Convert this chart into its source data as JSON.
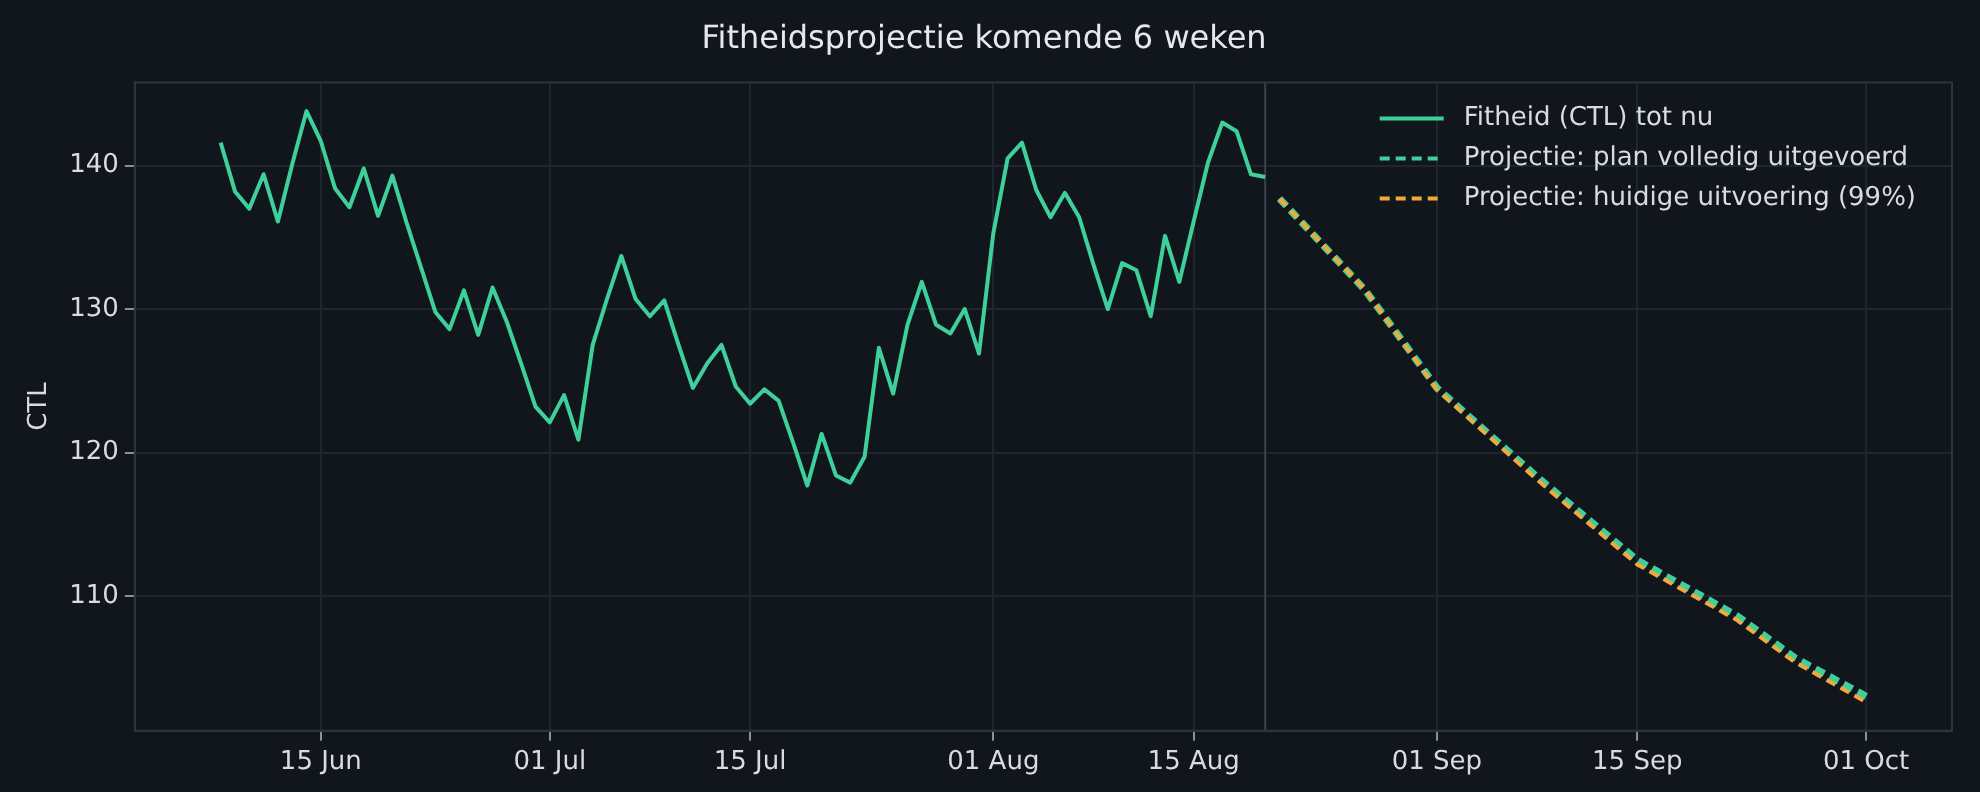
{
  "chart_data": {
    "type": "line",
    "title": "Fitheidsprojectie komende 6 weken",
    "ylabel": "CTL",
    "xlim": [
      "--06-02",
      "--10-07"
    ],
    "ylim": [
      100.6,
      145.8
    ],
    "xticks": [
      {
        "value": "--06-15",
        "label": "15 Jun"
      },
      {
        "value": "--07-01",
        "label": "01 Jul"
      },
      {
        "value": "--07-15",
        "label": "15 Jul"
      },
      {
        "value": "--08-01",
        "label": "01 Aug"
      },
      {
        "value": "--08-15",
        "label": "15 Aug"
      },
      {
        "value": "--09-01",
        "label": "01 Sep"
      },
      {
        "value": "--09-15",
        "label": "15 Sep"
      },
      {
        "value": "--10-01",
        "label": "01 Oct"
      }
    ],
    "yticks": [
      110,
      120,
      130,
      140
    ],
    "grid": true,
    "legend": "top right",
    "marker": "none",
    "ref_lines": [
      {
        "axis": "x",
        "value": "--08-20",
        "color": "#3a4250"
      }
    ],
    "series": [
      {
        "name": "Fitheid (CTL) tot nu",
        "color": "#3ecf9a",
        "line_style": "solid",
        "x": [
          "--06-08",
          "--06-09",
          "--06-10",
          "--06-11",
          "--06-12",
          "--06-13",
          "--06-14",
          "--06-15",
          "--06-16",
          "--06-17",
          "--06-18",
          "--06-19",
          "--06-20",
          "--06-21",
          "--06-22",
          "--06-23",
          "--06-24",
          "--06-25",
          "--06-26",
          "--06-27",
          "--06-28",
          "--06-29",
          "--06-30",
          "--07-01",
          "--07-02",
          "--07-03",
          "--07-04",
          "--07-05",
          "--07-06",
          "--07-07",
          "--07-08",
          "--07-09",
          "--07-10",
          "--07-11",
          "--07-12",
          "--07-13",
          "--07-14",
          "--07-15",
          "--07-16",
          "--07-17",
          "--07-18",
          "--07-19",
          "--07-20",
          "--07-21",
          "--07-22",
          "--07-23",
          "--07-24",
          "--07-25",
          "--07-26",
          "--07-27",
          "--07-28",
          "--07-29",
          "--07-30",
          "--07-31",
          "--08-01",
          "--08-02",
          "--08-03",
          "--08-04",
          "--08-05",
          "--08-06",
          "--08-07",
          "--08-08",
          "--08-09",
          "--08-10",
          "--08-11",
          "--08-12",
          "--08-13",
          "--08-14",
          "--08-15",
          "--08-16",
          "--08-17",
          "--08-18",
          "--08-19",
          "--08-20"
        ],
        "values": [
          141.6,
          138.2,
          137.0,
          139.4,
          136.1,
          140.1,
          143.8,
          141.7,
          138.4,
          137.1,
          139.8,
          136.5,
          139.3,
          136.0,
          132.9,
          129.8,
          128.6,
          131.3,
          128.2,
          131.5,
          129.1,
          126.2,
          123.2,
          122.1,
          124.0,
          120.9,
          127.5,
          130.7,
          133.7,
          130.7,
          129.5,
          130.6,
          127.5,
          124.5,
          126.2,
          127.5,
          124.6,
          123.4,
          124.4,
          123.6,
          120.7,
          117.7,
          121.3,
          118.4,
          117.9,
          119.7,
          127.3,
          124.1,
          128.9,
          131.9,
          128.9,
          128.3,
          130.0,
          126.9,
          135.3,
          140.5,
          141.6,
          138.3,
          136.4,
          138.1,
          136.4,
          133.1,
          130.0,
          133.2,
          132.7,
          129.5,
          135.1,
          131.9,
          136.1,
          140.2,
          143.0,
          142.4,
          139.4,
          139.2
        ]
      },
      {
        "name": "Projectie: plan volledig uitgevoerd",
        "color": "#3ecf9a",
        "line_style": "dashed",
        "x": [
          "--08-21",
          "--08-27",
          "--09-01",
          "--09-08",
          "--09-15",
          "--09-22",
          "--09-26",
          "--10-01"
        ],
        "values": [
          137.7,
          131.3,
          124.5,
          118.3,
          112.5,
          108.6,
          105.7,
          103.0
        ]
      },
      {
        "name": "Projectie: huidige uitvoering (99%)",
        "color": "#f5a83a",
        "line_style": "dashed",
        "x": [
          "--08-21",
          "--08-27",
          "--09-01",
          "--09-08",
          "--09-15",
          "--09-22",
          "--09-26",
          "--10-01"
        ],
        "values": [
          137.7,
          131.3,
          124.4,
          118.1,
          112.2,
          108.3,
          105.4,
          102.6
        ]
      }
    ]
  }
}
